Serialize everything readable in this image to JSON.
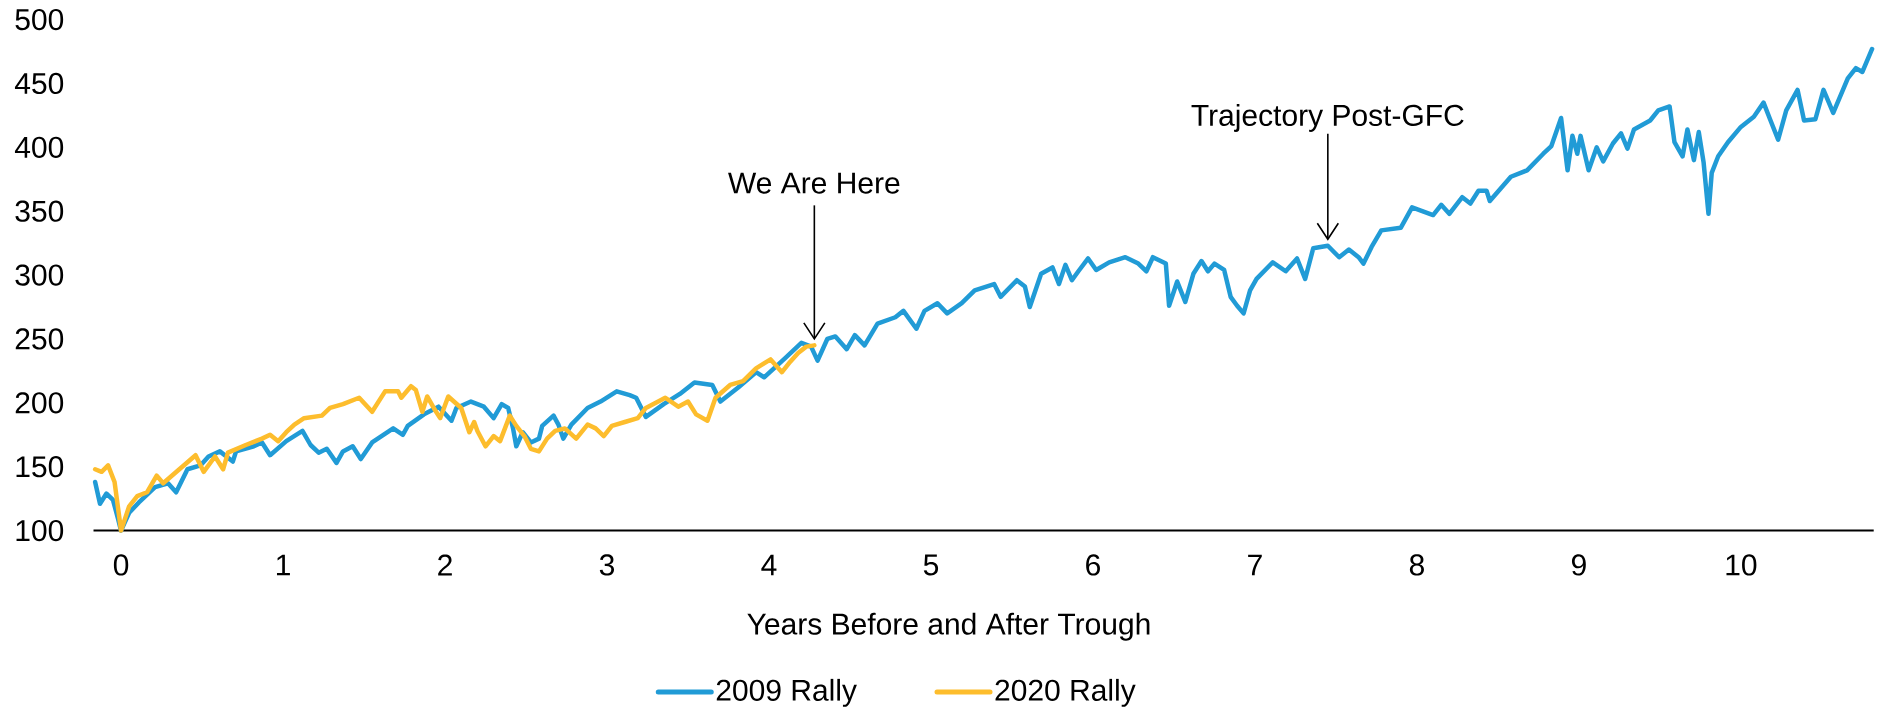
{
  "chart_data": {
    "type": "line",
    "xlabel": "Years Before and After Trough",
    "xlim": [
      -0.17,
      10.82
    ],
    "xticks": [
      0,
      1,
      2,
      3,
      4,
      5,
      6,
      7,
      8,
      9,
      10
    ],
    "ylim": [
      100,
      500
    ],
    "yticks": [
      100,
      150,
      200,
      250,
      300,
      350,
      400,
      450,
      500
    ],
    "legend": "bottom",
    "marker": "none",
    "line_style": "solid",
    "annotations": [
      {
        "text": "We Are Here",
        "x": 4.28,
        "y": 245
      },
      {
        "text": "Trajectory Post-GFC",
        "x": 7.45,
        "y": 323
      }
    ],
    "series": [
      {
        "name": "2009 Rally",
        "color": "#219bd6",
        "x": [
          -0.16,
          -0.13,
          -0.09,
          -0.05,
          -0.02,
          0,
          0.05,
          0.11,
          0.21,
          0.29,
          0.34,
          0.41,
          0.49,
          0.54,
          0.61,
          0.69,
          0.71,
          0.82,
          0.87,
          0.92,
          1.02,
          1.12,
          1.17,
          1.22,
          1.27,
          1.33,
          1.37,
          1.43,
          1.48,
          1.55,
          1.68,
          1.74,
          1.77,
          1.87,
          1.96,
          2.04,
          2.07,
          2.16,
          2.24,
          2.3,
          2.35,
          2.39,
          2.42,
          2.44,
          2.48,
          2.53,
          2.58,
          2.6,
          2.67,
          2.7,
          2.73,
          2.78,
          2.88,
          2.96,
          3.06,
          3.14,
          3.18,
          3.24,
          3.35,
          3.45,
          3.54,
          3.65,
          3.7,
          3.81,
          3.92,
          3.97,
          4.1,
          4.2,
          4.26,
          4.3,
          4.36,
          4.41,
          4.48,
          4.53,
          4.59,
          4.67,
          4.78,
          4.83,
          4.91,
          4.96,
          5.04,
          5.1,
          5.19,
          5.27,
          5.39,
          5.43,
          5.53,
          5.58,
          5.61,
          5.68,
          5.75,
          5.79,
          5.83,
          5.87,
          5.91,
          5.97,
          6.02,
          6.1,
          6.2,
          6.28,
          6.33,
          6.37,
          6.45,
          6.47,
          6.52,
          6.57,
          6.62,
          6.67,
          6.71,
          6.75,
          6.81,
          6.85,
          6.89,
          6.93,
          6.97,
          7.01,
          7.11,
          7.19,
          7.26,
          7.31,
          7.36,
          7.45,
          7.52,
          7.58,
          7.64,
          7.67,
          7.72,
          7.78,
          7.9,
          7.97,
          8.1,
          8.15,
          8.2,
          8.28,
          8.33,
          8.38,
          8.43,
          8.45,
          8.58,
          8.68,
          8.78,
          8.83,
          8.89,
          8.93,
          8.96,
          8.99,
          9.01,
          9.06,
          9.11,
          9.15,
          9.21,
          9.26,
          9.3,
          9.34,
          9.44,
          9.49,
          9.56,
          9.59,
          9.64,
          9.67,
          9.71,
          9.74,
          9.77,
          9.8,
          9.82,
          9.86,
          9.92,
          10.0,
          10.08,
          10.14,
          10.18,
          10.23,
          10.28,
          10.35,
          10.39,
          10.46,
          10.51,
          10.57,
          10.66,
          10.71,
          10.75,
          10.81
        ],
        "values": [
          138,
          121,
          129,
          124,
          110,
          100,
          114,
          122,
          134,
          137,
          130,
          148,
          151,
          158,
          162,
          154,
          162,
          166,
          169,
          159,
          170,
          178,
          167,
          161,
          164,
          153,
          162,
          166,
          156,
          169,
          180,
          175,
          182,
          191,
          197,
          186,
          196,
          201,
          197,
          188,
          199,
          196,
          180,
          166,
          177,
          169,
          172,
          182,
          190,
          183,
          172,
          183,
          196,
          201,
          209,
          206,
          204,
          189,
          199,
          207,
          216,
          214,
          201,
          212,
          224,
          220,
          235,
          247,
          244,
          233,
          250,
          252,
          242,
          253,
          245,
          262,
          267,
          272,
          258,
          272,
          278,
          270,
          278,
          288,
          293,
          283,
          296,
          291,
          275,
          301,
          306,
          293,
          308,
          296,
          303,
          313,
          304,
          310,
          314,
          309,
          303,
          314,
          309,
          276,
          295,
          279,
          301,
          311,
          303,
          309,
          304,
          283,
          276,
          270,
          288,
          297,
          310,
          303,
          313,
          297,
          321,
          323,
          314,
          320,
          314,
          309,
          322,
          335,
          337,
          353,
          347,
          355,
          348,
          361,
          356,
          366,
          366,
          358,
          377,
          382,
          395,
          401,
          423,
          382,
          409,
          395,
          409,
          382,
          400,
          389,
          403,
          411,
          399,
          414,
          421,
          429,
          432,
          404,
          393,
          414,
          390,
          412,
          388,
          348,
          380,
          393,
          404,
          416,
          424,
          435,
          422,
          406,
          429,
          445,
          421,
          422,
          445,
          427,
          454,
          462,
          459,
          477
        ]
      },
      {
        "name": "2020 Rally",
        "color": "#fdbd2d",
        "x": [
          -0.16,
          -0.12,
          -0.08,
          -0.04,
          -0.02,
          0,
          0.05,
          0.1,
          0.16,
          0.22,
          0.26,
          0.36,
          0.46,
          0.51,
          0.58,
          0.63,
          0.66,
          0.77,
          0.87,
          0.92,
          0.97,
          1.02,
          1.07,
          1.13,
          1.24,
          1.29,
          1.37,
          1.47,
          1.55,
          1.63,
          1.71,
          1.73,
          1.79,
          1.82,
          1.86,
          1.89,
          1.94,
          1.97,
          2.02,
          2.1,
          2.15,
          2.18,
          2.2,
          2.25,
          2.3,
          2.34,
          2.4,
          2.44,
          2.49,
          2.53,
          2.58,
          2.63,
          2.68,
          2.74,
          2.81,
          2.88,
          2.93,
          2.98,
          3.03,
          3.11,
          3.19,
          3.24,
          3.36,
          3.44,
          3.5,
          3.55,
          3.62,
          3.67,
          3.76,
          3.84,
          3.92,
          4.01,
          4.08,
          4.13,
          4.18,
          4.23,
          4.28
        ],
        "values": [
          148,
          146,
          151,
          138,
          119,
          100,
          119,
          127,
          130,
          143,
          137,
          148,
          159,
          146,
          158,
          148,
          161,
          167,
          172,
          175,
          170,
          177,
          183,
          188,
          190,
          196,
          199,
          204,
          193,
          209,
          209,
          204,
          213,
          210,
          193,
          205,
          194,
          188,
          205,
          196,
          177,
          185,
          178,
          166,
          174,
          170,
          190,
          182,
          174,
          164,
          162,
          172,
          178,
          180,
          172,
          183,
          180,
          174,
          182,
          185,
          188,
          196,
          204,
          197,
          201,
          191,
          186,
          204,
          214,
          217,
          227,
          234,
          224,
          232,
          239,
          244,
          245
        ]
      }
    ]
  }
}
